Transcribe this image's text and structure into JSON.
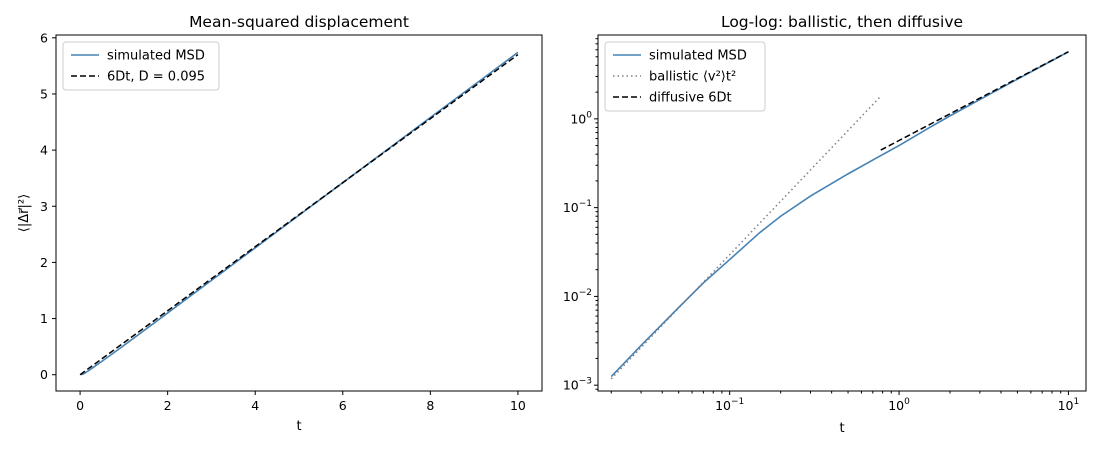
{
  "colors": {
    "msd": "#4682b4",
    "fit": "#000000",
    "ballistic": "#808080",
    "frame": "#000000"
  },
  "chart_data": [
    {
      "type": "line",
      "title": "Mean-squared displacement",
      "xlabel": "t",
      "ylabel": "⟨|Δr⃗|²⟩",
      "xscale": "linear",
      "yscale": "linear",
      "xlim": [
        -0.55,
        10.55
      ],
      "ylim": [
        -0.29,
        6.05
      ],
      "xticks": [
        0,
        2,
        4,
        6,
        8,
        10
      ],
      "xtick_labels": [
        "0",
        "2",
        "4",
        "6",
        "8",
        "10"
      ],
      "yticks": [
        0,
        1,
        2,
        3,
        4,
        5,
        6
      ],
      "ytick_labels": [
        "0",
        "1",
        "2",
        "3",
        "4",
        "5",
        "6"
      ],
      "legend": {
        "position": "top-left"
      },
      "series": [
        {
          "name": "simulated MSD",
          "style": "solid",
          "color": "#4682b4",
          "x": [
            0.02,
            0.05,
            0.1,
            0.2,
            0.3,
            0.5,
            0.75,
            1,
            1.5,
            2,
            3,
            4,
            5,
            6,
            7,
            8,
            9,
            10
          ],
          "y": [
            0.0012,
            0.0072,
            0.025,
            0.075,
            0.13,
            0.24,
            0.38,
            0.52,
            0.81,
            1.1,
            1.68,
            2.26,
            2.84,
            3.42,
            4.0,
            4.58,
            5.16,
            5.74
          ]
        },
        {
          "name": "6Dt, D = 0.095",
          "style": "dashed",
          "color": "#000000",
          "x": [
            0,
            10
          ],
          "y": [
            0,
            5.7
          ]
        }
      ]
    },
    {
      "type": "line",
      "title": "Log-log: ballistic, then diffusive",
      "xlabel": "t",
      "ylabel": "",
      "xscale": "log",
      "yscale": "log",
      "xlim": [
        0.0167,
        12.7
      ],
      "ylim": [
        0.00086,
        8.8
      ],
      "xticks": [
        0.1,
        1,
        10
      ],
      "xtick_labels": [
        "10",
        "10",
        "10"
      ],
      "xtick_exponents": [
        "−1",
        "0",
        "1"
      ],
      "yticks": [
        0.001,
        0.01,
        0.1,
        1
      ],
      "ytick_labels": [
        "10",
        "10",
        "10",
        "10"
      ],
      "ytick_exponents": [
        "−3",
        "−2",
        "−1",
        "0"
      ],
      "legend": {
        "position": "top-left"
      },
      "series": [
        {
          "name": "simulated MSD",
          "style": "solid",
          "color": "#4682b4",
          "x": [
            0.02,
            0.03,
            0.05,
            0.07,
            0.1,
            0.15,
            0.2,
            0.3,
            0.5,
            0.75,
            1,
            1.5,
            2,
            3,
            5,
            7,
            10
          ],
          "y": [
            0.00125,
            0.0028,
            0.0075,
            0.0142,
            0.026,
            0.052,
            0.08,
            0.135,
            0.24,
            0.37,
            0.5,
            0.79,
            1.08,
            1.65,
            2.8,
            3.95,
            5.7
          ]
        },
        {
          "name": "ballistic ⟨v²⟩t²",
          "style": "dotted",
          "color": "#808080",
          "x": [
            0.02,
            0.05,
            0.1,
            0.2,
            0.4,
            0.78
          ],
          "y": [
            0.00118,
            0.0074,
            0.0295,
            0.118,
            0.472,
            1.8
          ]
        },
        {
          "name": "diffusive 6Dt",
          "style": "dashed",
          "color": "#000000",
          "x": [
            0.78,
            1,
            2,
            5,
            10
          ],
          "y": [
            0.445,
            0.57,
            1.14,
            2.85,
            5.7
          ]
        }
      ]
    }
  ]
}
